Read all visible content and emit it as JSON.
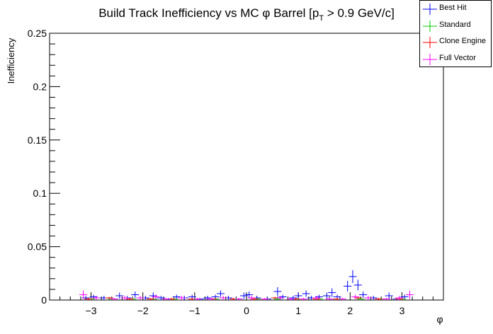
{
  "chart_data": {
    "type": "scatter",
    "title": "Build Track Inefficiency vs MC φ Barrel [p",
    "title_sub": "T",
    "title_tail": " > 0.9 GeV/c]",
    "xlabel": "φ",
    "ylabel": "Inefficiency",
    "xlim": [
      -3.8,
      3.8
    ],
    "ylim": [
      0,
      0.25
    ],
    "x_ticks": [
      -3,
      -2,
      -1,
      0,
      1,
      2,
      3
    ],
    "x_tick_labels": [
      "−3",
      "−2",
      "−1",
      "0",
      "1",
      "2",
      "3"
    ],
    "y_ticks": [
      0,
      0.05,
      0.1,
      0.15,
      0.2,
      0.25
    ],
    "y_tick_labels": [
      "0",
      "0.05",
      "0.1",
      "0.15",
      "0.2",
      "0.25"
    ],
    "legend_position": "top-right",
    "series": [
      {
        "name": "Best Hit",
        "color": "#0000ff",
        "x": [
          -3.1,
          -2.95,
          -2.75,
          -2.45,
          -2.3,
          -2.15,
          -1.95,
          -1.8,
          -1.65,
          -1.5,
          -1.35,
          -1.2,
          -1.05,
          -0.9,
          -0.75,
          -0.6,
          -0.5,
          -0.35,
          -0.05,
          0.05,
          0.2,
          0.4,
          0.6,
          0.7,
          0.9,
          1.0,
          1.15,
          1.25,
          1.4,
          1.55,
          1.65,
          1.75,
          1.95,
          2.05,
          2.15,
          2.25,
          2.45,
          2.6,
          2.75,
          2.9,
          3.05
        ],
        "y": [
          0.002,
          0.003,
          0.002,
          0.004,
          0.002,
          0.005,
          0.002,
          0.004,
          0.002,
          0.001,
          0.003,
          0.002,
          0.003,
          0.001,
          0.002,
          0.003,
          0.006,
          0.002,
          0.004,
          0.005,
          0.002,
          0.001,
          0.008,
          0.003,
          0.002,
          0.004,
          0.006,
          0.002,
          0.003,
          0.004,
          0.007,
          0.003,
          0.013,
          0.022,
          0.014,
          0.005,
          0.002,
          0.001,
          0.004,
          0.001,
          0.003
        ],
        "err": [
          0.002,
          0.002,
          0.002,
          0.003,
          0.002,
          0.003,
          0.002,
          0.003,
          0.002,
          0.001,
          0.002,
          0.002,
          0.002,
          0.001,
          0.002,
          0.002,
          0.003,
          0.002,
          0.003,
          0.003,
          0.002,
          0.001,
          0.004,
          0.002,
          0.002,
          0.003,
          0.003,
          0.002,
          0.002,
          0.003,
          0.004,
          0.002,
          0.005,
          0.006,
          0.005,
          0.003,
          0.002,
          0.001,
          0.003,
          0.001,
          0.002
        ]
      },
      {
        "name": "Standard",
        "color": "#00c800",
        "x": [
          -3.0,
          -2.6,
          -2.2,
          -1.8,
          -1.4,
          -1.0,
          -0.6,
          -0.2,
          0.2,
          0.6,
          1.0,
          1.4,
          1.8,
          2.2,
          2.6,
          3.0
        ],
        "y": [
          0.001,
          0.001,
          0.001,
          0.001,
          0.001,
          0.001,
          0.001,
          0.001,
          0.001,
          0.001,
          0.001,
          0.001,
          0.001,
          0.001,
          0.001,
          0.001
        ],
        "err": [
          0.001,
          0.001,
          0.001,
          0.001,
          0.001,
          0.001,
          0.001,
          0.001,
          0.001,
          0.001,
          0.001,
          0.001,
          0.001,
          0.001,
          0.001,
          0.001
        ]
      },
      {
        "name": "Clone Engine",
        "color": "#ff0000",
        "x": [
          -3.05,
          -2.65,
          -2.25,
          -1.85,
          -1.45,
          -1.05,
          -0.65,
          -0.25,
          0.15,
          0.55,
          0.95,
          1.35,
          1.75,
          2.15,
          2.55,
          2.95
        ],
        "y": [
          0.001,
          0.002,
          0.001,
          0.001,
          0.001,
          0.001,
          0.001,
          0.001,
          0.001,
          0.002,
          0.001,
          0.001,
          0.001,
          0.002,
          0.001,
          0.001
        ],
        "err": [
          0.001,
          0.001,
          0.001,
          0.001,
          0.001,
          0.001,
          0.001,
          0.001,
          0.001,
          0.001,
          0.001,
          0.001,
          0.001,
          0.001,
          0.001,
          0.001
        ]
      },
      {
        "name": "Full Vector",
        "color": "#ff00ff",
        "x": [
          -3.15,
          -2.9,
          -2.55,
          -2.35,
          -2.05,
          -1.75,
          -1.55,
          -1.25,
          -0.95,
          -0.7,
          -0.45,
          -0.15,
          0.1,
          0.35,
          0.65,
          0.85,
          1.1,
          1.35,
          1.6,
          1.85,
          2.1,
          2.35,
          2.7,
          2.95,
          3.15
        ],
        "y": [
          0.005,
          0.002,
          0.001,
          0.002,
          0.002,
          0.003,
          0.001,
          0.002,
          0.001,
          0.001,
          0.002,
          0.001,
          0.002,
          0.001,
          0.002,
          0.001,
          0.001,
          0.002,
          0.001,
          0.001,
          0.003,
          0.002,
          0.001,
          0.002,
          0.005
        ],
        "err": [
          0.004,
          0.002,
          0.001,
          0.002,
          0.002,
          0.002,
          0.001,
          0.002,
          0.001,
          0.001,
          0.002,
          0.001,
          0.002,
          0.001,
          0.002,
          0.001,
          0.001,
          0.002,
          0.001,
          0.001,
          0.002,
          0.002,
          0.001,
          0.002,
          0.004
        ]
      }
    ]
  }
}
